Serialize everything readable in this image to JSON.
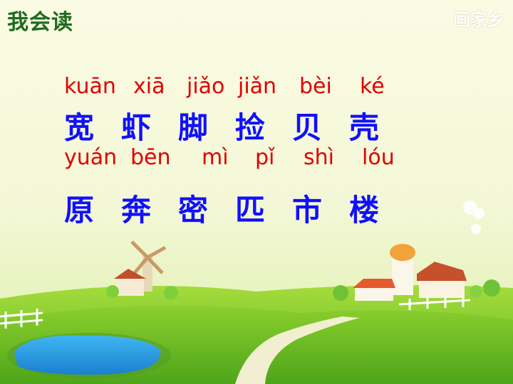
{
  "header": {
    "title": "我会读",
    "watermark": "画家乡"
  },
  "lesson": {
    "row1": {
      "pinyin": [
        "kuān",
        "xiā",
        "jiǎo",
        "jiǎn",
        "bèi",
        "ké"
      ],
      "hanzi": [
        "宽",
        "虾",
        "脚",
        "捡",
        "贝",
        "壳"
      ]
    },
    "row2": {
      "pinyin": [
        "yuán",
        "bēn",
        "mì",
        "pǐ",
        "shì",
        "lóu"
      ],
      "hanzi": [
        "原",
        "奔",
        "密",
        "匹",
        "市",
        "楼"
      ]
    }
  },
  "colors": {
    "pinyin": "#e00000",
    "hanzi": "#1010ff",
    "title": "#1f6b1f"
  }
}
